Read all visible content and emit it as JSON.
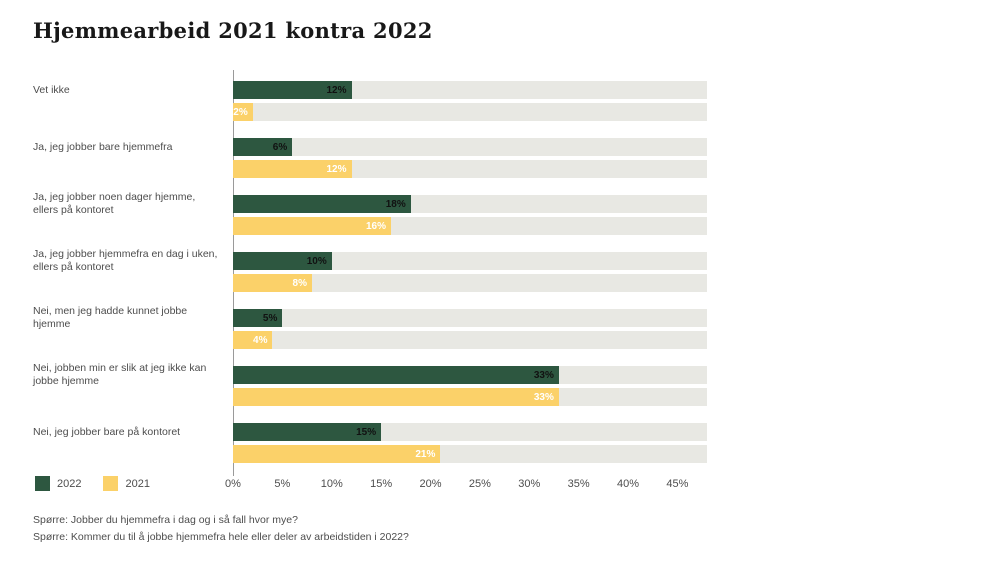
{
  "title": "Hjemmearbeid 2021 kontra 2022",
  "legend": {
    "items": [
      {
        "label": "2022",
        "color": "#2d5740"
      },
      {
        "label": "2021",
        "color": "#fbd169"
      }
    ]
  },
  "footnotes": {
    "line1": "Spørre: Jobber du hjemmefra i dag og i så fall hvor mye?",
    "line2": "Spørre: Kommer du til å jobbe hjemmefra hele eller deler av arbeidstiden i 2022?"
  },
  "chart_data": {
    "type": "bar",
    "orientation": "horizontal",
    "title": "Hjemmearbeid 2021 kontra 2022",
    "categories": [
      "Vet ikke",
      "Ja, jeg jobber bare hjemmefra",
      "Ja, jeg jobber noen dager hjemme, ellers på kontoret",
      "Ja, jeg jobber hjemmefra en dag i uken, ellers på kontoret",
      "Nei, men jeg hadde kunnet jobbe hjemme",
      "Nei, jobben min er slik at jeg ikke kan jobbe hjemme",
      "Nei, jeg jobber bare på kontoret"
    ],
    "series": [
      {
        "name": "2022",
        "color": "#2d5740",
        "label_color": "#111111",
        "values": [
          12,
          6,
          18,
          10,
          5,
          33,
          15
        ]
      },
      {
        "name": "2021",
        "color": "#fbd169",
        "label_color": "#ffffff",
        "values": [
          2,
          12,
          16,
          8,
          4,
          33,
          21
        ]
      }
    ],
    "value_suffix": "%",
    "xlim": [
      0,
      48
    ],
    "tick_values": [
      0,
      5,
      10,
      15,
      20,
      25,
      30,
      35,
      40,
      45
    ],
    "ticks": [
      "0%",
      "5%",
      "10%",
      "15%",
      "20%",
      "25%",
      "30%",
      "35%",
      "40%",
      "45%"
    ],
    "grid": false,
    "legend_position": "bottom-left",
    "track_color": "#e8e8e3"
  }
}
